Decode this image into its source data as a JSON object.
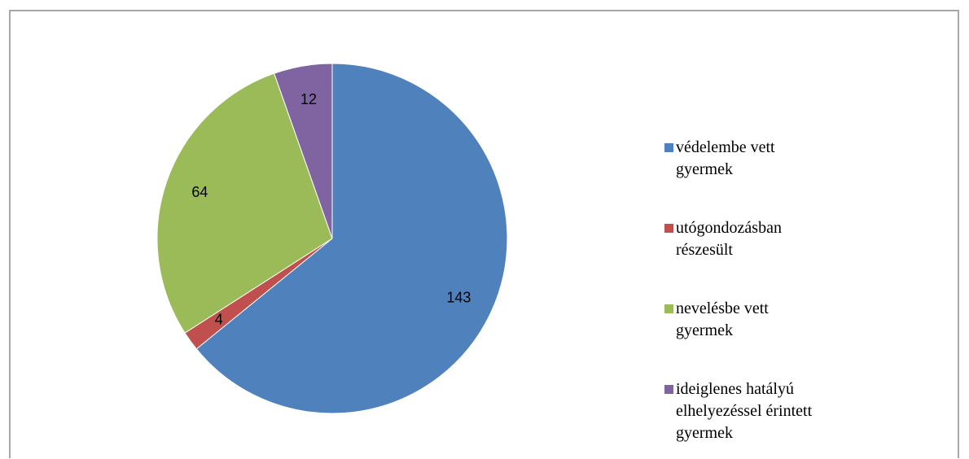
{
  "chart_data": {
    "type": "pie",
    "categories": [
      "védelembe vett gyermek",
      "utógondozásban részesült",
      "nevelésbe vett gyermek",
      "ideiglenes hatályú elhelyezéssel érintett gyermek"
    ],
    "values": [
      143,
      4,
      64,
      12
    ],
    "colors": [
      "#4f81bd",
      "#c0504d",
      "#9bbb59",
      "#8064a2"
    ],
    "legend": "right"
  }
}
